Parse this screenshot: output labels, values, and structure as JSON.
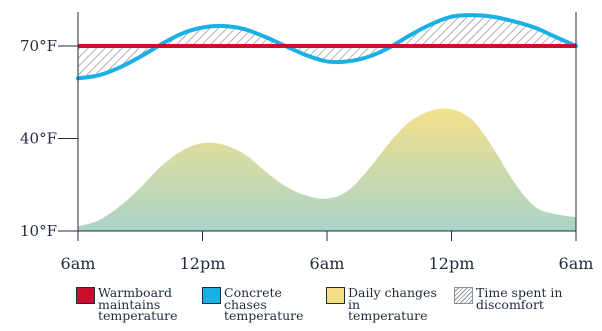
{
  "chart_data": {
    "type": "area",
    "x_ticks": [
      "6am",
      "12pm",
      "6am",
      "12pm",
      "6am"
    ],
    "y_ticks": [
      {
        "value": 10,
        "label": "10°F"
      },
      {
        "value": 40,
        "label": "40°F"
      },
      {
        "value": 70,
        "label": "70°F"
      }
    ],
    "ylim": [
      10,
      80
    ],
    "hours": [
      0,
      24
    ],
    "grid": false,
    "legend_position": "bottom",
    "series": [
      {
        "name": "Warmboard maintains temperature",
        "type": "line",
        "color": "#c8102e",
        "x": [
          0,
          24
        ],
        "y": [
          70,
          70
        ]
      },
      {
        "name": "Concrete chases temperature",
        "type": "line",
        "color": "#1ab0e6",
        "x": [
          0,
          1,
          2,
          3,
          4,
          5,
          6,
          7,
          8,
          9,
          10,
          11,
          12,
          13,
          14,
          15,
          16,
          17,
          18,
          19,
          20,
          21,
          22,
          23,
          24
        ],
        "y": [
          59.5,
          60.5,
          63,
          66.5,
          70.5,
          74,
          76,
          76.5,
          75.5,
          73,
          70,
          67,
          65,
          65,
          66.5,
          69.5,
          73.5,
          77,
          79.5,
          80,
          79.5,
          78,
          76,
          73,
          70
        ]
      },
      {
        "name": "Daily changes in temperature",
        "type": "area",
        "color": "#f3df82",
        "x": [
          0,
          1,
          2,
          3,
          4,
          5,
          6,
          7,
          8,
          9,
          10,
          11,
          12,
          13,
          14,
          15,
          16,
          17,
          18,
          19,
          20,
          21,
          22,
          23,
          24
        ],
        "y": [
          11.5,
          13.5,
          18,
          24,
          31,
          36,
          38.5,
          38,
          35,
          29.5,
          24.5,
          21.5,
          20.5,
          23,
          30,
          38.5,
          45.5,
          49,
          49.5,
          46,
          37,
          26,
          18,
          15.5,
          14.5
        ]
      },
      {
        "name": "Time spent in discomfort",
        "type": "hatch",
        "color": "#8a9099"
      }
    ],
    "colors": {
      "axis": "#1f2a3d",
      "area_top": "#f4e08a",
      "area_bottom": "#a9d4c8"
    }
  }
}
